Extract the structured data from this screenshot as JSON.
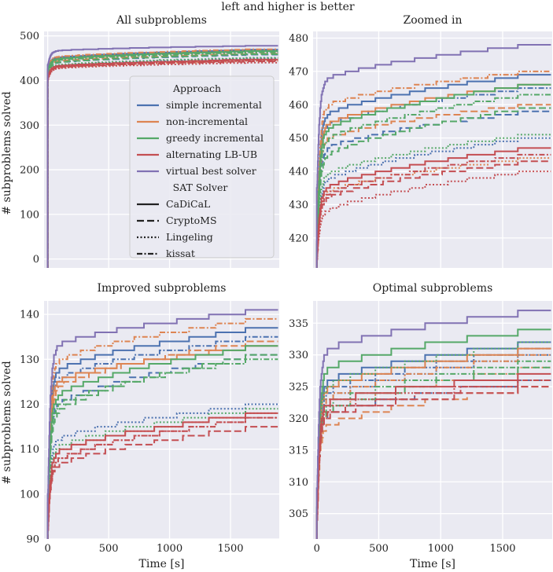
{
  "suptitle": "left and higher is better",
  "colors": {
    "simple incremental": "#4c72b0",
    "non-incremental": "#dd8452",
    "greedy incremental": "#55a868",
    "alternating LB-UB": "#c44e52",
    "virtual best solver": "#8172b3",
    "background": "#eaeaf2",
    "grid": "#ffffff"
  },
  "legend": {
    "approach_title": "Approach",
    "approaches": [
      "simple incremental",
      "non-incremental",
      "greedy incremental",
      "alternating LB-UB",
      "virtual best solver"
    ],
    "solver_title": "SAT Solver",
    "solvers": [
      "CaDiCaL",
      "CryptoMS",
      "Lingeling",
      "kissat"
    ]
  },
  "chart_data": [
    {
      "type": "line",
      "title": "All subproblems",
      "xlabel": "",
      "ylabel": "# subproblems solved",
      "xlim": [
        -30,
        1900
      ],
      "ylim": [
        -20,
        510
      ],
      "xticks": [
        0,
        500,
        1000,
        1500
      ],
      "xtick_labels": [
        "",
        "",
        "",
        ""
      ],
      "yticks": [
        0,
        100,
        200,
        300,
        400,
        500
      ],
      "ytick_labels": [
        "0",
        "100",
        "200",
        "300",
        "400",
        "500"
      ],
      "legend_position": "center-right",
      "series": [
        {
          "approach": "simple incremental",
          "solver": "CaDiCaL",
          "final": 469,
          "start": 420,
          "knee": 448
        },
        {
          "approach": "simple incremental",
          "solver": "CryptoMS",
          "final": 458,
          "start": 410,
          "knee": 437
        },
        {
          "approach": "simple incremental",
          "solver": "Lingeling",
          "final": 450,
          "start": 405,
          "knee": 430
        },
        {
          "approach": "simple incremental",
          "solver": "kissat",
          "final": 465,
          "start": 418,
          "knee": 445
        },
        {
          "approach": "non-incremental",
          "solver": "CaDiCaL",
          "final": 466,
          "start": 415,
          "knee": 445
        },
        {
          "approach": "non-incremental",
          "solver": "CryptoMS",
          "final": 460,
          "start": 413,
          "knee": 440
        },
        {
          "approach": "non-incremental",
          "solver": "Lingeling",
          "final": 444,
          "start": 404,
          "knee": 425
        },
        {
          "approach": "non-incremental",
          "solver": "kissat",
          "final": 470,
          "start": 420,
          "knee": 450
        },
        {
          "approach": "greedy incremental",
          "solver": "CaDiCaL",
          "final": 466,
          "start": 415,
          "knee": 445
        },
        {
          "approach": "greedy incremental",
          "solver": "CryptoMS",
          "final": 459,
          "start": 410,
          "knee": 437
        },
        {
          "approach": "greedy incremental",
          "solver": "Lingeling",
          "final": 451,
          "start": 405,
          "knee": 432
        },
        {
          "approach": "greedy incremental",
          "solver": "kissat",
          "final": 463,
          "start": 412,
          "knee": 442
        },
        {
          "approach": "alternating LB-UB",
          "solver": "CaDiCaL",
          "final": 447,
          "start": 402,
          "knee": 430
        },
        {
          "approach": "alternating LB-UB",
          "solver": "CryptoMS",
          "final": 443,
          "start": 400,
          "knee": 427
        },
        {
          "approach": "alternating LB-UB",
          "solver": "Lingeling",
          "final": 440,
          "start": 398,
          "knee": 425
        },
        {
          "approach": "alternating LB-UB",
          "solver": "kissat",
          "final": 445,
          "start": 401,
          "knee": 428
        },
        {
          "approach": "virtual best solver",
          "solver": "CaDiCaL",
          "final": 478,
          "start": 430,
          "knee": 465
        }
      ]
    },
    {
      "type": "line",
      "title": "Zoomed in",
      "xlabel": "",
      "ylabel": "",
      "xlim": [
        -30,
        1900
      ],
      "ylim": [
        411,
        482
      ],
      "xticks": [
        0,
        500,
        1000,
        1500
      ],
      "xtick_labels": [
        "",
        "",
        "",
        ""
      ],
      "yticks": [
        420,
        430,
        440,
        450,
        460,
        470,
        480
      ],
      "ytick_labels": [
        "420",
        "430",
        "440",
        "450",
        "460",
        "470",
        "480"
      ],
      "series": [
        {
          "approach": "simple incremental",
          "solver": "CaDiCaL",
          "final": 469,
          "start": 412,
          "knee": 455
        },
        {
          "approach": "simple incremental",
          "solver": "CryptoMS",
          "final": 458,
          "start": 411,
          "knee": 445
        },
        {
          "approach": "simple incremental",
          "solver": "Lingeling",
          "final": 450,
          "start": 411,
          "knee": 435
        },
        {
          "approach": "simple incremental",
          "solver": "kissat",
          "final": 465,
          "start": 412,
          "knee": 452
        },
        {
          "approach": "non-incremental",
          "solver": "CaDiCaL",
          "final": 466,
          "start": 412,
          "knee": 452
        },
        {
          "approach": "non-incremental",
          "solver": "CryptoMS",
          "final": 460,
          "start": 411,
          "knee": 448
        },
        {
          "approach": "non-incremental",
          "solver": "Lingeling",
          "final": 444,
          "start": 411,
          "knee": 432
        },
        {
          "approach": "non-incremental",
          "solver": "kissat",
          "final": 470,
          "start": 412,
          "knee": 458
        },
        {
          "approach": "greedy incremental",
          "solver": "CaDiCaL",
          "final": 466,
          "start": 412,
          "knee": 450
        },
        {
          "approach": "greedy incremental",
          "solver": "CryptoMS",
          "final": 459,
          "start": 411,
          "knee": 442
        },
        {
          "approach": "greedy incremental",
          "solver": "Lingeling",
          "final": 451,
          "start": 411,
          "knee": 437
        },
        {
          "approach": "greedy incremental",
          "solver": "kissat",
          "final": 463,
          "start": 411,
          "knee": 447
        },
        {
          "approach": "alternating LB-UB",
          "solver": "CaDiCaL",
          "final": 447,
          "start": 411,
          "knee": 433
        },
        {
          "approach": "alternating LB-UB",
          "solver": "CryptoMS",
          "final": 443,
          "start": 411,
          "knee": 430
        },
        {
          "approach": "alternating LB-UB",
          "solver": "Lingeling",
          "final": 440,
          "start": 411,
          "knee": 426
        },
        {
          "approach": "alternating LB-UB",
          "solver": "kissat",
          "final": 445,
          "start": 411,
          "knee": 431
        },
        {
          "approach": "virtual best solver",
          "solver": "CaDiCaL",
          "final": 478,
          "start": 430,
          "knee": 466
        }
      ]
    },
    {
      "type": "line",
      "title": "Improved subproblems",
      "xlabel": "Time [s]",
      "ylabel": "# subproblems solved",
      "xlim": [
        -30,
        1900
      ],
      "ylim": [
        90,
        143
      ],
      "xticks": [
        0,
        500,
        1000,
        1500
      ],
      "xtick_labels": [
        "0",
        "500",
        "1000",
        "1500"
      ],
      "yticks": [
        90,
        100,
        110,
        120,
        130,
        140
      ],
      "ytick_labels": [
        "90",
        "100",
        "110",
        "120",
        "130",
        "140"
      ],
      "series": [
        {
          "approach": "simple incremental",
          "solver": "CaDiCaL",
          "final": 137,
          "start": 92,
          "knee": 126
        },
        {
          "approach": "simple incremental",
          "solver": "CryptoMS",
          "final": 131,
          "start": 91,
          "knee": 118
        },
        {
          "approach": "simple incremental",
          "solver": "Lingeling",
          "final": 120,
          "start": 91,
          "knee": 111
        },
        {
          "approach": "simple incremental",
          "solver": "kissat",
          "final": 135,
          "start": 92,
          "knee": 124
        },
        {
          "approach": "non-incremental",
          "solver": "CaDiCaL",
          "final": 133,
          "start": 92,
          "knee": 124
        },
        {
          "approach": "non-incremental",
          "solver": "CryptoMS",
          "final": 134,
          "start": 91,
          "knee": 122
        },
        {
          "approach": "non-incremental",
          "solver": "Lingeling",
          "final": 118,
          "start": 91,
          "knee": 108
        },
        {
          "approach": "non-incremental",
          "solver": "kissat",
          "final": 139,
          "start": 93,
          "knee": 128
        },
        {
          "approach": "greedy incremental",
          "solver": "CaDiCaL",
          "final": 133,
          "start": 91,
          "knee": 120
        },
        {
          "approach": "greedy incremental",
          "solver": "CryptoMS",
          "final": 131,
          "start": 91,
          "knee": 116
        },
        {
          "approach": "greedy incremental",
          "solver": "Lingeling",
          "final": 119,
          "start": 91,
          "knee": 109
        },
        {
          "approach": "greedy incremental",
          "solver": "kissat",
          "final": 130,
          "start": 91,
          "knee": 118
        },
        {
          "approach": "alternating LB-UB",
          "solver": "CaDiCaL",
          "final": 118,
          "start": 90,
          "knee": 108
        },
        {
          "approach": "alternating LB-UB",
          "solver": "CryptoMS",
          "final": 115,
          "start": 90,
          "knee": 105
        },
        {
          "approach": "alternating LB-UB",
          "solver": "Lingeling",
          "final": 117,
          "start": 90,
          "knee": 106
        },
        {
          "approach": "alternating LB-UB",
          "solver": "kissat",
          "final": 117,
          "start": 90,
          "knee": 106
        },
        {
          "approach": "virtual best solver",
          "solver": "CaDiCaL",
          "final": 141,
          "start": 95,
          "knee": 132
        }
      ]
    },
    {
      "type": "line",
      "title": "Optimal subproblems",
      "xlabel": "Time [s]",
      "ylabel": "",
      "xlim": [
        -30,
        1900
      ],
      "ylim": [
        301,
        338.5
      ],
      "xticks": [
        0,
        500,
        1000,
        1500
      ],
      "xtick_labels": [
        "0",
        "500",
        "1000",
        "1500"
      ],
      "yticks": [
        305,
        310,
        315,
        320,
        325,
        330,
        335
      ],
      "ytick_labels": [
        "305",
        "310",
        "315",
        "320",
        "325",
        "330",
        "335"
      ],
      "series": [
        {
          "approach": "simple incremental",
          "solver": "CaDiCaL",
          "final": 332,
          "start": 302,
          "knee": 325
        },
        {
          "approach": "simple incremental",
          "solver": "CryptoMS",
          "final": 326,
          "start": 302,
          "knee": 320
        },
        {
          "approach": "simple incremental",
          "solver": "Lingeling",
          "final": 330,
          "start": 302,
          "knee": 322
        },
        {
          "approach": "simple incremental",
          "solver": "kissat",
          "final": 331,
          "start": 302,
          "knee": 323
        },
        {
          "approach": "non-incremental",
          "solver": "CaDiCaL",
          "final": 331,
          "start": 302,
          "knee": 324
        },
        {
          "approach": "non-incremental",
          "solver": "CryptoMS",
          "final": 325,
          "start": 302,
          "knee": 318
        },
        {
          "approach": "non-incremental",
          "solver": "Lingeling",
          "final": 328,
          "start": 302,
          "knee": 320
        },
        {
          "approach": "non-incremental",
          "solver": "kissat",
          "final": 330,
          "start": 302,
          "knee": 322
        },
        {
          "approach": "greedy incremental",
          "solver": "CaDiCaL",
          "final": 334,
          "start": 303,
          "knee": 327
        },
        {
          "approach": "greedy incremental",
          "solver": "CryptoMS",
          "final": 328,
          "start": 302,
          "knee": 320
        },
        {
          "approach": "greedy incremental",
          "solver": "Lingeling",
          "final": 332,
          "start": 302,
          "knee": 324
        },
        {
          "approach": "greedy incremental",
          "solver": "kissat",
          "final": 329,
          "start": 302,
          "knee": 321
        },
        {
          "approach": "alternating LB-UB",
          "solver": "CaDiCaL",
          "final": 327,
          "start": 302,
          "knee": 322
        },
        {
          "approach": "alternating LB-UB",
          "solver": "CryptoMS",
          "final": 325,
          "start": 301,
          "knee": 320
        },
        {
          "approach": "alternating LB-UB",
          "solver": "Lingeling",
          "final": 326,
          "start": 301,
          "knee": 321
        },
        {
          "approach": "alternating LB-UB",
          "solver": "kissat",
          "final": 326,
          "start": 301,
          "knee": 320
        },
        {
          "approach": "virtual best solver",
          "solver": "CaDiCaL",
          "final": 337,
          "start": 305,
          "knee": 330
        }
      ]
    }
  ]
}
